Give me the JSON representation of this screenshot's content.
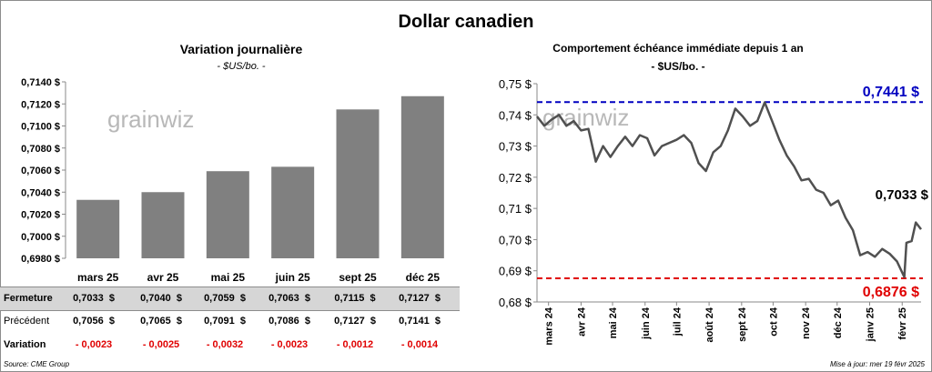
{
  "title": "Dollar canadien",
  "left_chart": {
    "title": "Variation  journalière",
    "subtitle": "- $US/bo. -",
    "watermark": "grainwiz"
  },
  "right_chart": {
    "title": "Comportement échéance immédiate depuis 1 an",
    "subtitle": "- $US/bo. -",
    "watermark": "grainwiz"
  },
  "table": {
    "rows": [
      {
        "label": "Fermeture",
        "values": [
          "0,7033  $",
          "0,7040  $",
          "0,7059  $",
          "0,7063  $",
          "0,7115  $",
          "0,7127  $"
        ]
      },
      {
        "label": "Précédent",
        "values": [
          "0,7056  $",
          "0,7065  $",
          "0,7091  $",
          "0,7086  $",
          "0,7127  $",
          "0,7141  $"
        ]
      },
      {
        "label": "Variation",
        "values": [
          "- 0,0023",
          "- 0,0025",
          "- 0,0032",
          "- 0,0023",
          "- 0,0012",
          "- 0,0014"
        ]
      }
    ]
  },
  "footer": {
    "source": "Source: CME Group",
    "update": "Mise à jour: mer 19 févr 2025"
  },
  "chart_data": [
    {
      "type": "bar",
      "title": "Variation  journalière",
      "subtitle": "- $US/bo. -",
      "categories": [
        "mars 25",
        "avr 25",
        "mai 25",
        "juin 25",
        "sept 25",
        "déc 25"
      ],
      "values": [
        0.7033,
        0.704,
        0.7059,
        0.7063,
        0.7115,
        0.7127
      ],
      "ylim": [
        0.698,
        0.714
      ],
      "yticks": [
        "0,6980 $",
        "0,7000 $",
        "0,7020 $",
        "0,7040 $",
        "0,7060 $",
        "0,7080 $",
        "0,7100 $",
        "0,7120 $",
        "0,7140 $"
      ],
      "bar_color": "#808080",
      "grid": false
    },
    {
      "type": "line",
      "title": "Comportement échéance immédiate depuis 1 an",
      "subtitle": "- $US/bo. -",
      "x_range": [
        "2024-02-19",
        "2025-02-19"
      ],
      "xticks": [
        {
          "date": "2024-03-01",
          "label": "mars 24"
        },
        {
          "date": "2024-04-01",
          "label": "avr 24"
        },
        {
          "date": "2024-05-01",
          "label": "mai 24"
        },
        {
          "date": "2024-06-01",
          "label": "juin 24"
        },
        {
          "date": "2024-07-01",
          "label": "juil 24"
        },
        {
          "date": "2024-08-01",
          "label": "août 24"
        },
        {
          "date": "2024-09-01",
          "label": "sept 24"
        },
        {
          "date": "2024-10-01",
          "label": "oct 24"
        },
        {
          "date": "2024-11-01",
          "label": "nov 24"
        },
        {
          "date": "2024-12-01",
          "label": "déc 24"
        },
        {
          "date": "2025-01-01",
          "label": "janv 25"
        },
        {
          "date": "2025-02-01",
          "label": "févr 25"
        }
      ],
      "ylim": [
        0.68,
        0.75
      ],
      "yticks": [
        "0,68 $",
        "0,69 $",
        "0,70 $",
        "0,71 $",
        "0,72 $",
        "0,73 $",
        "0,74 $",
        "0,75 $"
      ],
      "line_color": "#505050",
      "series": [
        {
          "points": [
            [
              "2024-02-19",
              0.7395
            ],
            [
              "2024-02-26",
              0.7365
            ],
            [
              "2024-03-04",
              0.7385
            ],
            [
              "2024-03-11",
              0.74
            ],
            [
              "2024-03-18",
              0.7365
            ],
            [
              "2024-03-25",
              0.738
            ],
            [
              "2024-04-01",
              0.735
            ],
            [
              "2024-04-08",
              0.7355
            ],
            [
              "2024-04-15",
              0.725
            ],
            [
              "2024-04-22",
              0.73
            ],
            [
              "2024-04-29",
              0.7265
            ],
            [
              "2024-05-06",
              0.73
            ],
            [
              "2024-05-13",
              0.733
            ],
            [
              "2024-05-20",
              0.73
            ],
            [
              "2024-05-27",
              0.7335
            ],
            [
              "2024-06-03",
              0.7325
            ],
            [
              "2024-06-10",
              0.727
            ],
            [
              "2024-06-17",
              0.73
            ],
            [
              "2024-06-24",
              0.731
            ],
            [
              "2024-07-01",
              0.732
            ],
            [
              "2024-07-08",
              0.7335
            ],
            [
              "2024-07-15",
              0.731
            ],
            [
              "2024-07-22",
              0.7245
            ],
            [
              "2024-07-29",
              0.722
            ],
            [
              "2024-08-05",
              0.728
            ],
            [
              "2024-08-12",
              0.73
            ],
            [
              "2024-08-19",
              0.735
            ],
            [
              "2024-08-26",
              0.742
            ],
            [
              "2024-09-02",
              0.7395
            ],
            [
              "2024-09-09",
              0.7365
            ],
            [
              "2024-09-16",
              0.738
            ],
            [
              "2024-09-23",
              0.744
            ],
            [
              "2024-09-30",
              0.738
            ],
            [
              "2024-10-07",
              0.732
            ],
            [
              "2024-10-14",
              0.727
            ],
            [
              "2024-10-21",
              0.7235
            ],
            [
              "2024-10-28",
              0.719
            ],
            [
              "2024-11-04",
              0.7195
            ],
            [
              "2024-11-11",
              0.716
            ],
            [
              "2024-11-18",
              0.715
            ],
            [
              "2024-11-25",
              0.711
            ],
            [
              "2024-12-02",
              0.7125
            ],
            [
              "2024-12-09",
              0.707
            ],
            [
              "2024-12-16",
              0.703
            ],
            [
              "2024-12-23",
              0.695
            ],
            [
              "2024-12-30",
              0.696
            ],
            [
              "2025-01-06",
              0.6945
            ],
            [
              "2025-01-13",
              0.697
            ],
            [
              "2025-01-20",
              0.6955
            ],
            [
              "2025-01-27",
              0.693
            ],
            [
              "2025-02-03",
              0.688
            ],
            [
              "2025-02-05",
              0.699
            ],
            [
              "2025-02-10",
              0.6995
            ],
            [
              "2025-02-14",
              0.7055
            ],
            [
              "2025-02-19",
              0.7033
            ]
          ]
        }
      ],
      "reference_lines": [
        {
          "value": 0.7441,
          "label": "0,7441 $",
          "color": "#0000c0",
          "style": "dashed"
        },
        {
          "value": 0.6876,
          "label": "0,6876 $",
          "color": "#e00000",
          "style": "dashed"
        }
      ],
      "annotations": [
        {
          "label": "0,7033 $",
          "value": 0.7033
        }
      ],
      "grid": false
    }
  ]
}
